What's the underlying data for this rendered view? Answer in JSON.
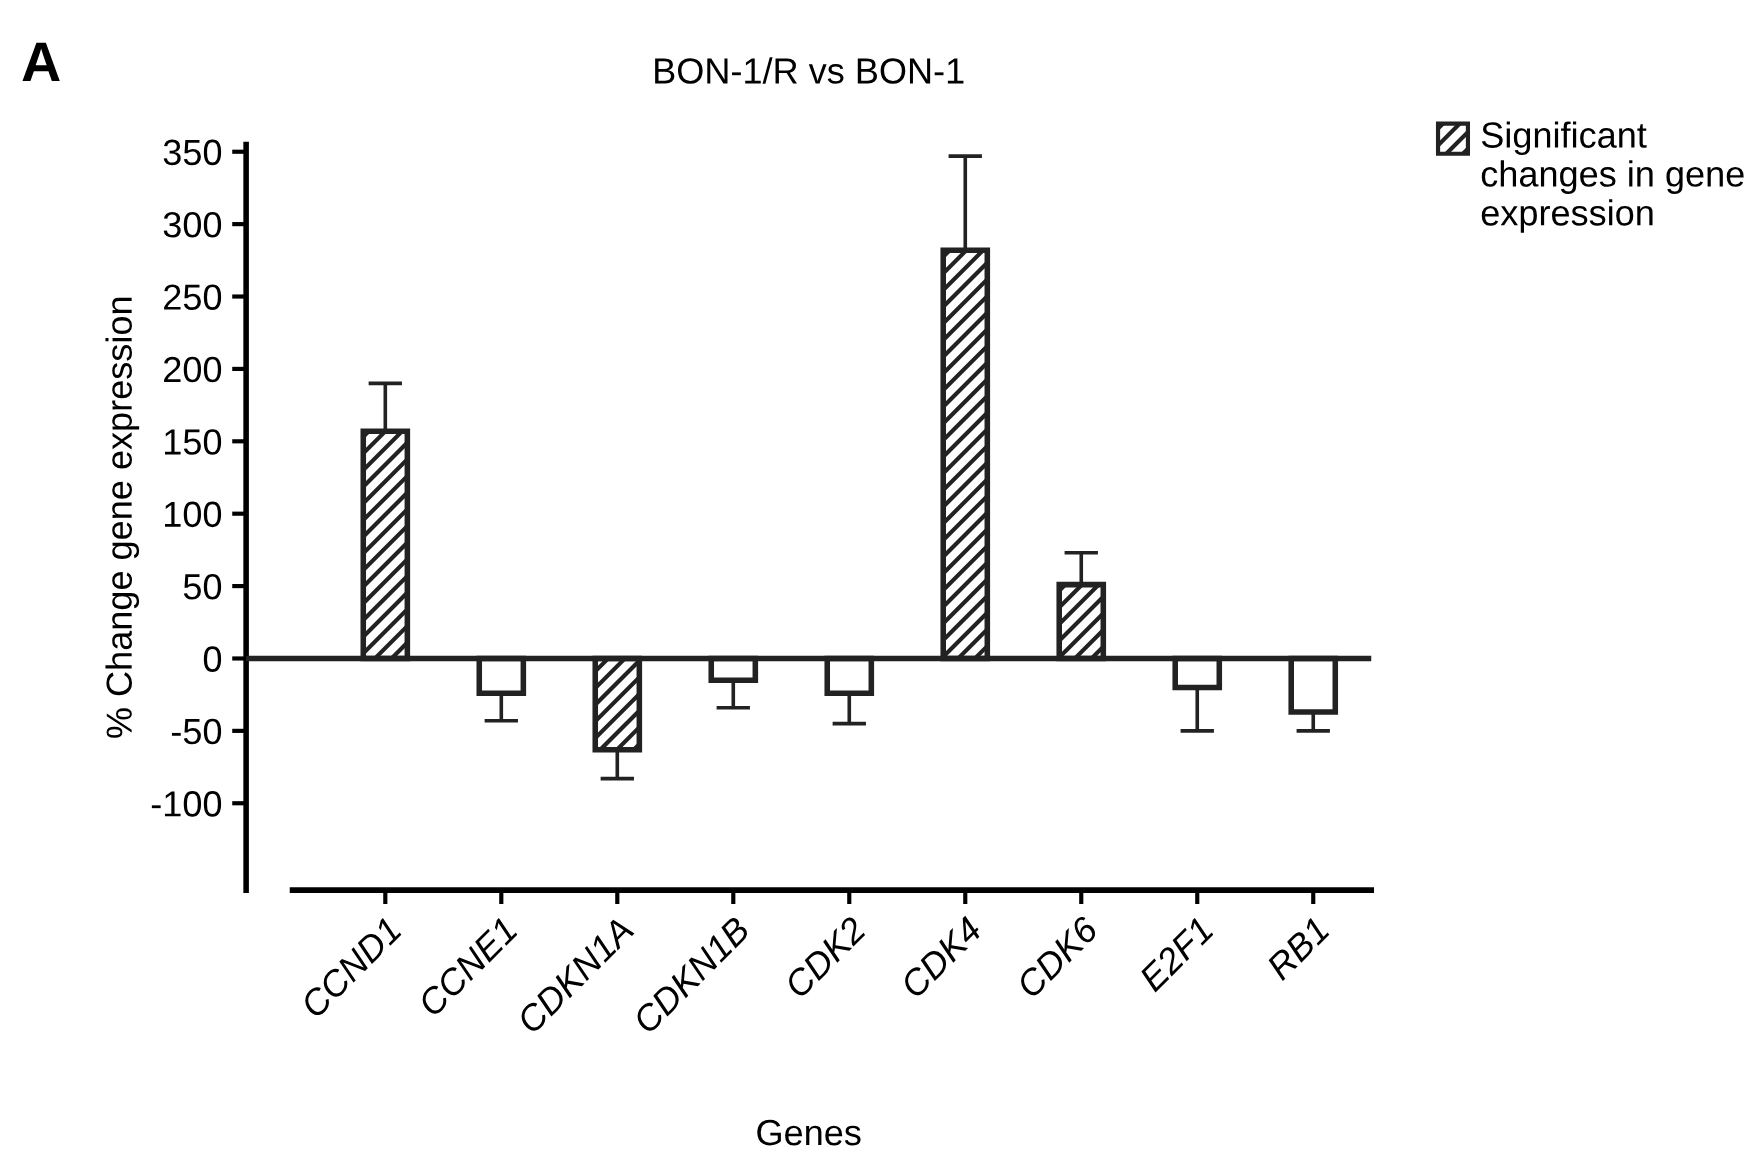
{
  "chart_data": {
    "type": "bar",
    "title": "BON-1/R vs BON-1",
    "xlabel": "Genes",
    "ylabel": "% Change gene expression",
    "annotations": [
      "A"
    ],
    "categories": [
      "CCND1",
      "CCNE1",
      "CDKN1A",
      "CDKN1B",
      "CDK2",
      "CDK4",
      "CDK6",
      "E2F1",
      "RB1"
    ],
    "series": [
      {
        "name": "Significant changes in gene expression",
        "color": "#222222",
        "values": [
          157,
          null,
          -63,
          null,
          null,
          282,
          51,
          null,
          null
        ],
        "errors": [
          [
            157,
            190
          ],
          null,
          [
            -83,
            -63
          ],
          null,
          null,
          [
            282,
            347
          ],
          [
            51,
            73
          ],
          null,
          null
        ]
      },
      {
        "color": "#ffffff",
        "values": [
          null,
          -24,
          null,
          -15,
          -24,
          null,
          null,
          -20,
          -37
        ],
        "errors": [
          null,
          [
            -43,
            -24
          ],
          null,
          [
            -34,
            -15
          ],
          [
            -45,
            -24
          ],
          null,
          null,
          [
            -50,
            -20
          ],
          [
            -50,
            -37
          ]
        ]
      }
    ],
    "ylim": [
      -160,
      355
    ],
    "yticks": [
      -100,
      -50,
      0,
      50,
      100,
      150,
      200,
      250,
      300,
      350
    ],
    "ref_lines": [
      {
        "axis": "y",
        "value": 0
      }
    ],
    "grid": false,
    "legend": "top right"
  }
}
